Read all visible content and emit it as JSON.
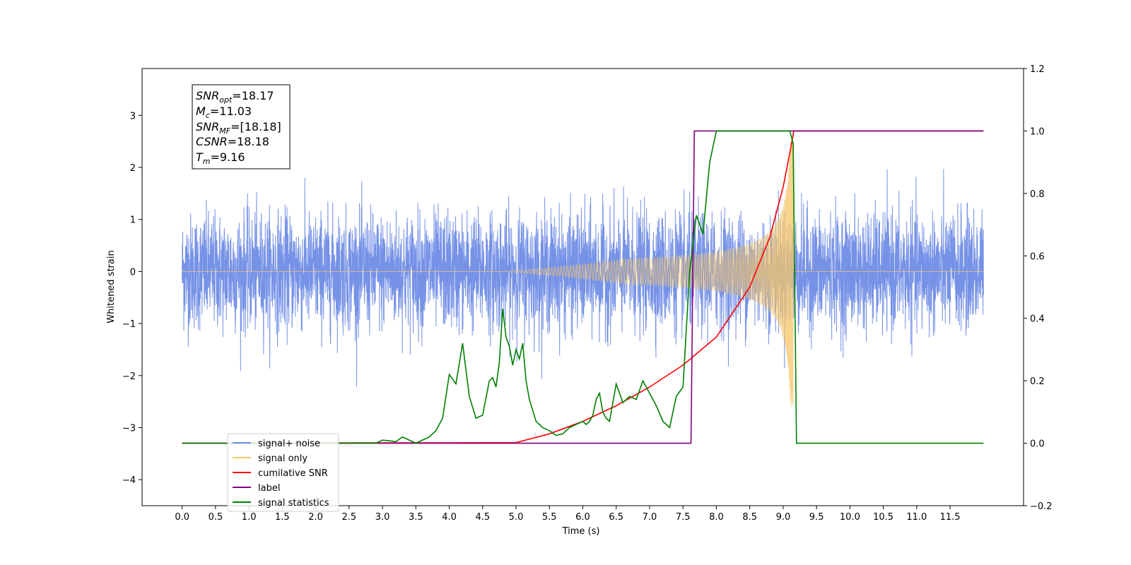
{
  "chart_data": {
    "type": "line",
    "xlabel": "Time (s)",
    "ylabel": "Whitened strain",
    "xlim": [
      -0.6,
      12.6
    ],
    "ylim": [
      -4.5,
      3.9
    ],
    "ylim_right": [
      -0.2,
      1.2
    ],
    "x_ticks": [
      "0.0",
      "0.5",
      "1.0",
      "1.5",
      "2.0",
      "2.5",
      "3.0",
      "3.5",
      "4.0",
      "4.5",
      "5.0",
      "5.5",
      "6.0",
      "6.5",
      "7.0",
      "7.5",
      "8.0",
      "8.5",
      "9.0",
      "9.5",
      "10.0",
      "10.5",
      "11.0",
      "11.5"
    ],
    "y_ticks": [
      "3",
      "2",
      "1",
      "0",
      "−1",
      "−2",
      "−3",
      "−4"
    ],
    "y_ticks_right": [
      "1.2",
      "1.0",
      "0.8",
      "0.6",
      "0.4",
      "0.2",
      "0.0",
      "−0.2"
    ],
    "grid": false,
    "legend_position": "lower-left",
    "annotation_lines": [
      {
        "base": "SNR",
        "sub": "opt",
        "value": "=18.17"
      },
      {
        "base": "M",
        "sub": "c",
        "value": "=11.03"
      },
      {
        "base": "SNR",
        "sub": "MF",
        "value": "=[18.18]"
      },
      {
        "base": "CSNR",
        "sub": "",
        "value": "=18.18"
      },
      {
        "base": "T",
        "sub": "m",
        "value": "=9.16"
      }
    ],
    "series": [
      {
        "name": "signal+ noise",
        "color": "#6f8ce6",
        "axis": "left",
        "description": "whitened strain noise, roughly ±1.5 amplitude from 0 to 12 s"
      },
      {
        "name": "signal only",
        "color": "#f5c56a",
        "axis": "left",
        "description": "chirp, amplitude ≈0 before 5 s, growing to ≈2.5 at merger t=9.16 s, zero after"
      },
      {
        "name": "cumilative SNR",
        "color": "#ff0000",
        "axis": "right",
        "x": [
          0,
          5,
          5.5,
          6,
          6.5,
          7,
          7.5,
          8,
          8.5,
          8.8,
          9.0,
          9.1,
          9.16,
          9.17,
          12
        ],
        "y": [
          0,
          0.002,
          0.03,
          0.07,
          0.12,
          0.18,
          0.25,
          0.34,
          0.5,
          0.66,
          0.82,
          0.93,
          1.0,
          1.0,
          1.0
        ]
      },
      {
        "name": "label",
        "color": "#800080",
        "axis": "right",
        "x": [
          0,
          7.62,
          7.67,
          9.15,
          9.16,
          12
        ],
        "y": [
          0,
          0,
          1.0,
          1.0,
          1.0,
          1.0
        ]
      },
      {
        "name": "signal statistics",
        "color": "#008000",
        "axis": "right",
        "x": [
          0,
          2.9,
          3.0,
          3.1,
          3.2,
          3.3,
          3.4,
          3.5,
          3.6,
          3.7,
          3.8,
          3.9,
          4.0,
          4.1,
          4.2,
          4.3,
          4.4,
          4.5,
          4.6,
          4.65,
          4.7,
          4.75,
          4.8,
          4.85,
          4.9,
          4.95,
          5.0,
          5.05,
          5.1,
          5.15,
          5.2,
          5.3,
          5.4,
          5.5,
          5.6,
          5.7,
          5.8,
          5.9,
          6.0,
          6.05,
          6.1,
          6.15,
          6.2,
          6.25,
          6.3,
          6.35,
          6.4,
          6.5,
          6.6,
          6.7,
          6.8,
          6.9,
          7.0,
          7.1,
          7.2,
          7.3,
          7.4,
          7.5,
          7.6,
          7.7,
          7.8,
          7.9,
          8.0,
          8.1,
          8.2,
          8.3,
          8.4,
          8.5,
          8.6,
          8.7,
          8.8,
          8.9,
          9.0,
          9.1,
          9.15,
          9.2,
          12
        ],
        "y": [
          0,
          0,
          0.01,
          0.008,
          0.005,
          0.02,
          0.01,
          0.0,
          0.01,
          0.02,
          0.04,
          0.08,
          0.22,
          0.19,
          0.32,
          0.15,
          0.08,
          0.09,
          0.2,
          0.21,
          0.18,
          0.26,
          0.43,
          0.34,
          0.31,
          0.25,
          0.3,
          0.27,
          0.32,
          0.2,
          0.14,
          0.07,
          0.05,
          0.04,
          0.025,
          0.03,
          0.05,
          0.06,
          0.07,
          0.06,
          0.07,
          0.09,
          0.14,
          0.16,
          0.1,
          0.08,
          0.07,
          0.19,
          0.13,
          0.15,
          0.14,
          0.2,
          0.16,
          0.12,
          0.07,
          0.05,
          0.15,
          0.18,
          0.55,
          0.73,
          0.67,
          0.9,
          1.0,
          1.0,
          1.0,
          1.0,
          1.0,
          1.0,
          1.0,
          1.0,
          1.0,
          1.0,
          1.0,
          1.0,
          0.96,
          0.0,
          0.0
        ]
      }
    ]
  }
}
